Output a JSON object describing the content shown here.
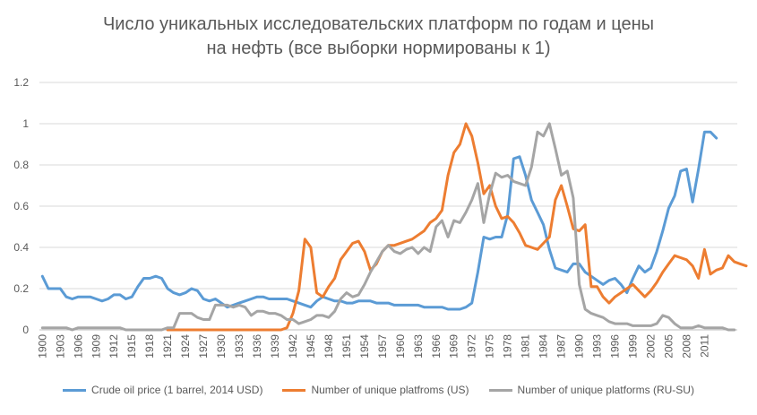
{
  "title_line1": "Число уникальных исследовательских платформ по годам и цены",
  "title_line2": "на нефть (все выборки нормированы к 1)",
  "chart_data": {
    "type": "line",
    "title": "Число уникальных исследовательских платформ по годам и цены на нефть (все выборки нормированы к 1)",
    "xlabel": "",
    "ylabel": "",
    "ylim": [
      0,
      1.2
    ],
    "yticks": [
      "0",
      "0.2",
      "0.4",
      "0.6",
      "0.8",
      "1",
      "1.2"
    ],
    "x_start": 1900,
    "x_end": 2016,
    "xtick_labels": [
      "1900",
      "1903",
      "1906",
      "1909",
      "1912",
      "1915",
      "1918",
      "1921",
      "1924",
      "1927",
      "1930",
      "1933",
      "1936",
      "1939",
      "1942",
      "1945",
      "1948",
      "1951",
      "1954",
      "1957",
      "1960",
      "1963",
      "1966",
      "1969",
      "1972",
      "1975",
      "1978",
      "1981",
      "1984",
      "1987",
      "1990",
      "1993",
      "1996",
      "1999",
      "2002",
      "2005",
      "2008",
      "2011"
    ],
    "grid": true,
    "legend_position": "bottom",
    "series": [
      {
        "name": "Crude oil price (1 barrel, 2014 USD)",
        "color": "#5B9BD5",
        "x_start": 1900,
        "values": [
          0.26,
          0.2,
          0.2,
          0.2,
          0.16,
          0.15,
          0.16,
          0.16,
          0.16,
          0.15,
          0.14,
          0.15,
          0.17,
          0.17,
          0.15,
          0.16,
          0.21,
          0.25,
          0.25,
          0.26,
          0.25,
          0.2,
          0.18,
          0.17,
          0.18,
          0.2,
          0.19,
          0.15,
          0.14,
          0.15,
          0.13,
          0.11,
          0.12,
          0.13,
          0.14,
          0.15,
          0.16,
          0.16,
          0.15,
          0.15,
          0.15,
          0.15,
          0.14,
          0.13,
          0.12,
          0.11,
          0.14,
          0.16,
          0.15,
          0.14,
          0.14,
          0.13,
          0.13,
          0.14,
          0.14,
          0.14,
          0.13,
          0.13,
          0.13,
          0.12,
          0.12,
          0.12,
          0.12,
          0.12,
          0.11,
          0.11,
          0.11,
          0.11,
          0.1,
          0.1,
          0.1,
          0.11,
          0.13,
          0.28,
          0.45,
          0.44,
          0.45,
          0.45,
          0.56,
          0.83,
          0.84,
          0.75,
          0.63,
          0.57,
          0.51,
          0.39,
          0.3,
          0.29,
          0.28,
          0.32,
          0.32,
          0.28,
          0.26,
          0.24,
          0.22,
          0.24,
          0.25,
          0.22,
          0.18,
          0.25,
          0.31,
          0.28,
          0.3,
          0.38,
          0.48,
          0.59,
          0.65,
          0.77,
          0.78,
          0.62,
          0.78,
          0.96,
          0.96,
          0.93
        ]
      },
      {
        "name": "Number of unique platfroms (US)",
        "color": "#ED7D31",
        "x_start": 1921,
        "values": [
          0.0,
          0.0,
          0.0,
          0.0,
          0.0,
          0.0,
          0.0,
          0.0,
          0.0,
          0.0,
          0.0,
          0.0,
          0.0,
          0.0,
          0.0,
          0.0,
          0.0,
          0.0,
          0.0,
          0.0,
          0.01,
          0.08,
          0.19,
          0.44,
          0.4,
          0.18,
          0.16,
          0.21,
          0.25,
          0.34,
          0.38,
          0.42,
          0.43,
          0.38,
          0.29,
          0.32,
          0.38,
          0.41,
          0.41,
          0.42,
          0.43,
          0.44,
          0.46,
          0.48,
          0.52,
          0.54,
          0.58,
          0.75,
          0.86,
          0.9,
          1.0,
          0.94,
          0.81,
          0.66,
          0.7,
          0.6,
          0.54,
          0.55,
          0.52,
          0.47,
          0.41,
          0.4,
          0.39,
          0.42,
          0.45,
          0.63,
          0.7,
          0.6,
          0.49,
          0.48,
          0.51,
          0.21,
          0.21,
          0.16,
          0.13,
          0.16,
          0.18,
          0.2,
          0.22,
          0.19,
          0.16,
          0.19,
          0.23,
          0.28,
          0.32,
          0.36,
          0.35,
          0.34,
          0.31,
          0.25,
          0.39,
          0.27,
          0.29,
          0.3,
          0.36,
          0.33,
          0.32,
          0.31
        ]
      },
      {
        "name": "Number of unique platforms (RU-SU)",
        "color": "#A5A5A5",
        "x_start": 1900,
        "values": [
          0.01,
          0.01,
          0.01,
          0.01,
          0.01,
          0.0,
          0.01,
          0.01,
          0.01,
          0.01,
          0.01,
          0.01,
          0.01,
          0.01,
          0.0,
          0.0,
          0.0,
          0.0,
          0.0,
          0.0,
          0.0,
          0.01,
          0.01,
          0.08,
          0.08,
          0.08,
          0.06,
          0.05,
          0.05,
          0.12,
          0.12,
          0.12,
          0.11,
          0.12,
          0.11,
          0.07,
          0.09,
          0.09,
          0.08,
          0.08,
          0.07,
          0.05,
          0.05,
          0.03,
          0.04,
          0.05,
          0.07,
          0.07,
          0.06,
          0.09,
          0.15,
          0.18,
          0.16,
          0.17,
          0.22,
          0.28,
          0.33,
          0.38,
          0.41,
          0.38,
          0.37,
          0.39,
          0.4,
          0.37,
          0.4,
          0.38,
          0.5,
          0.53,
          0.45,
          0.53,
          0.52,
          0.57,
          0.63,
          0.71,
          0.52,
          0.66,
          0.76,
          0.74,
          0.75,
          0.72,
          0.71,
          0.7,
          0.79,
          0.96,
          0.94,
          1.0,
          0.88,
          0.75,
          0.77,
          0.64,
          0.22,
          0.1,
          0.08,
          0.07,
          0.06,
          0.04,
          0.03,
          0.03,
          0.03,
          0.02,
          0.02,
          0.02,
          0.02,
          0.03,
          0.07,
          0.06,
          0.03,
          0.01,
          0.01,
          0.01,
          0.02,
          0.01,
          0.01,
          0.01,
          0.01,
          0.0,
          0.0
        ]
      }
    ]
  }
}
